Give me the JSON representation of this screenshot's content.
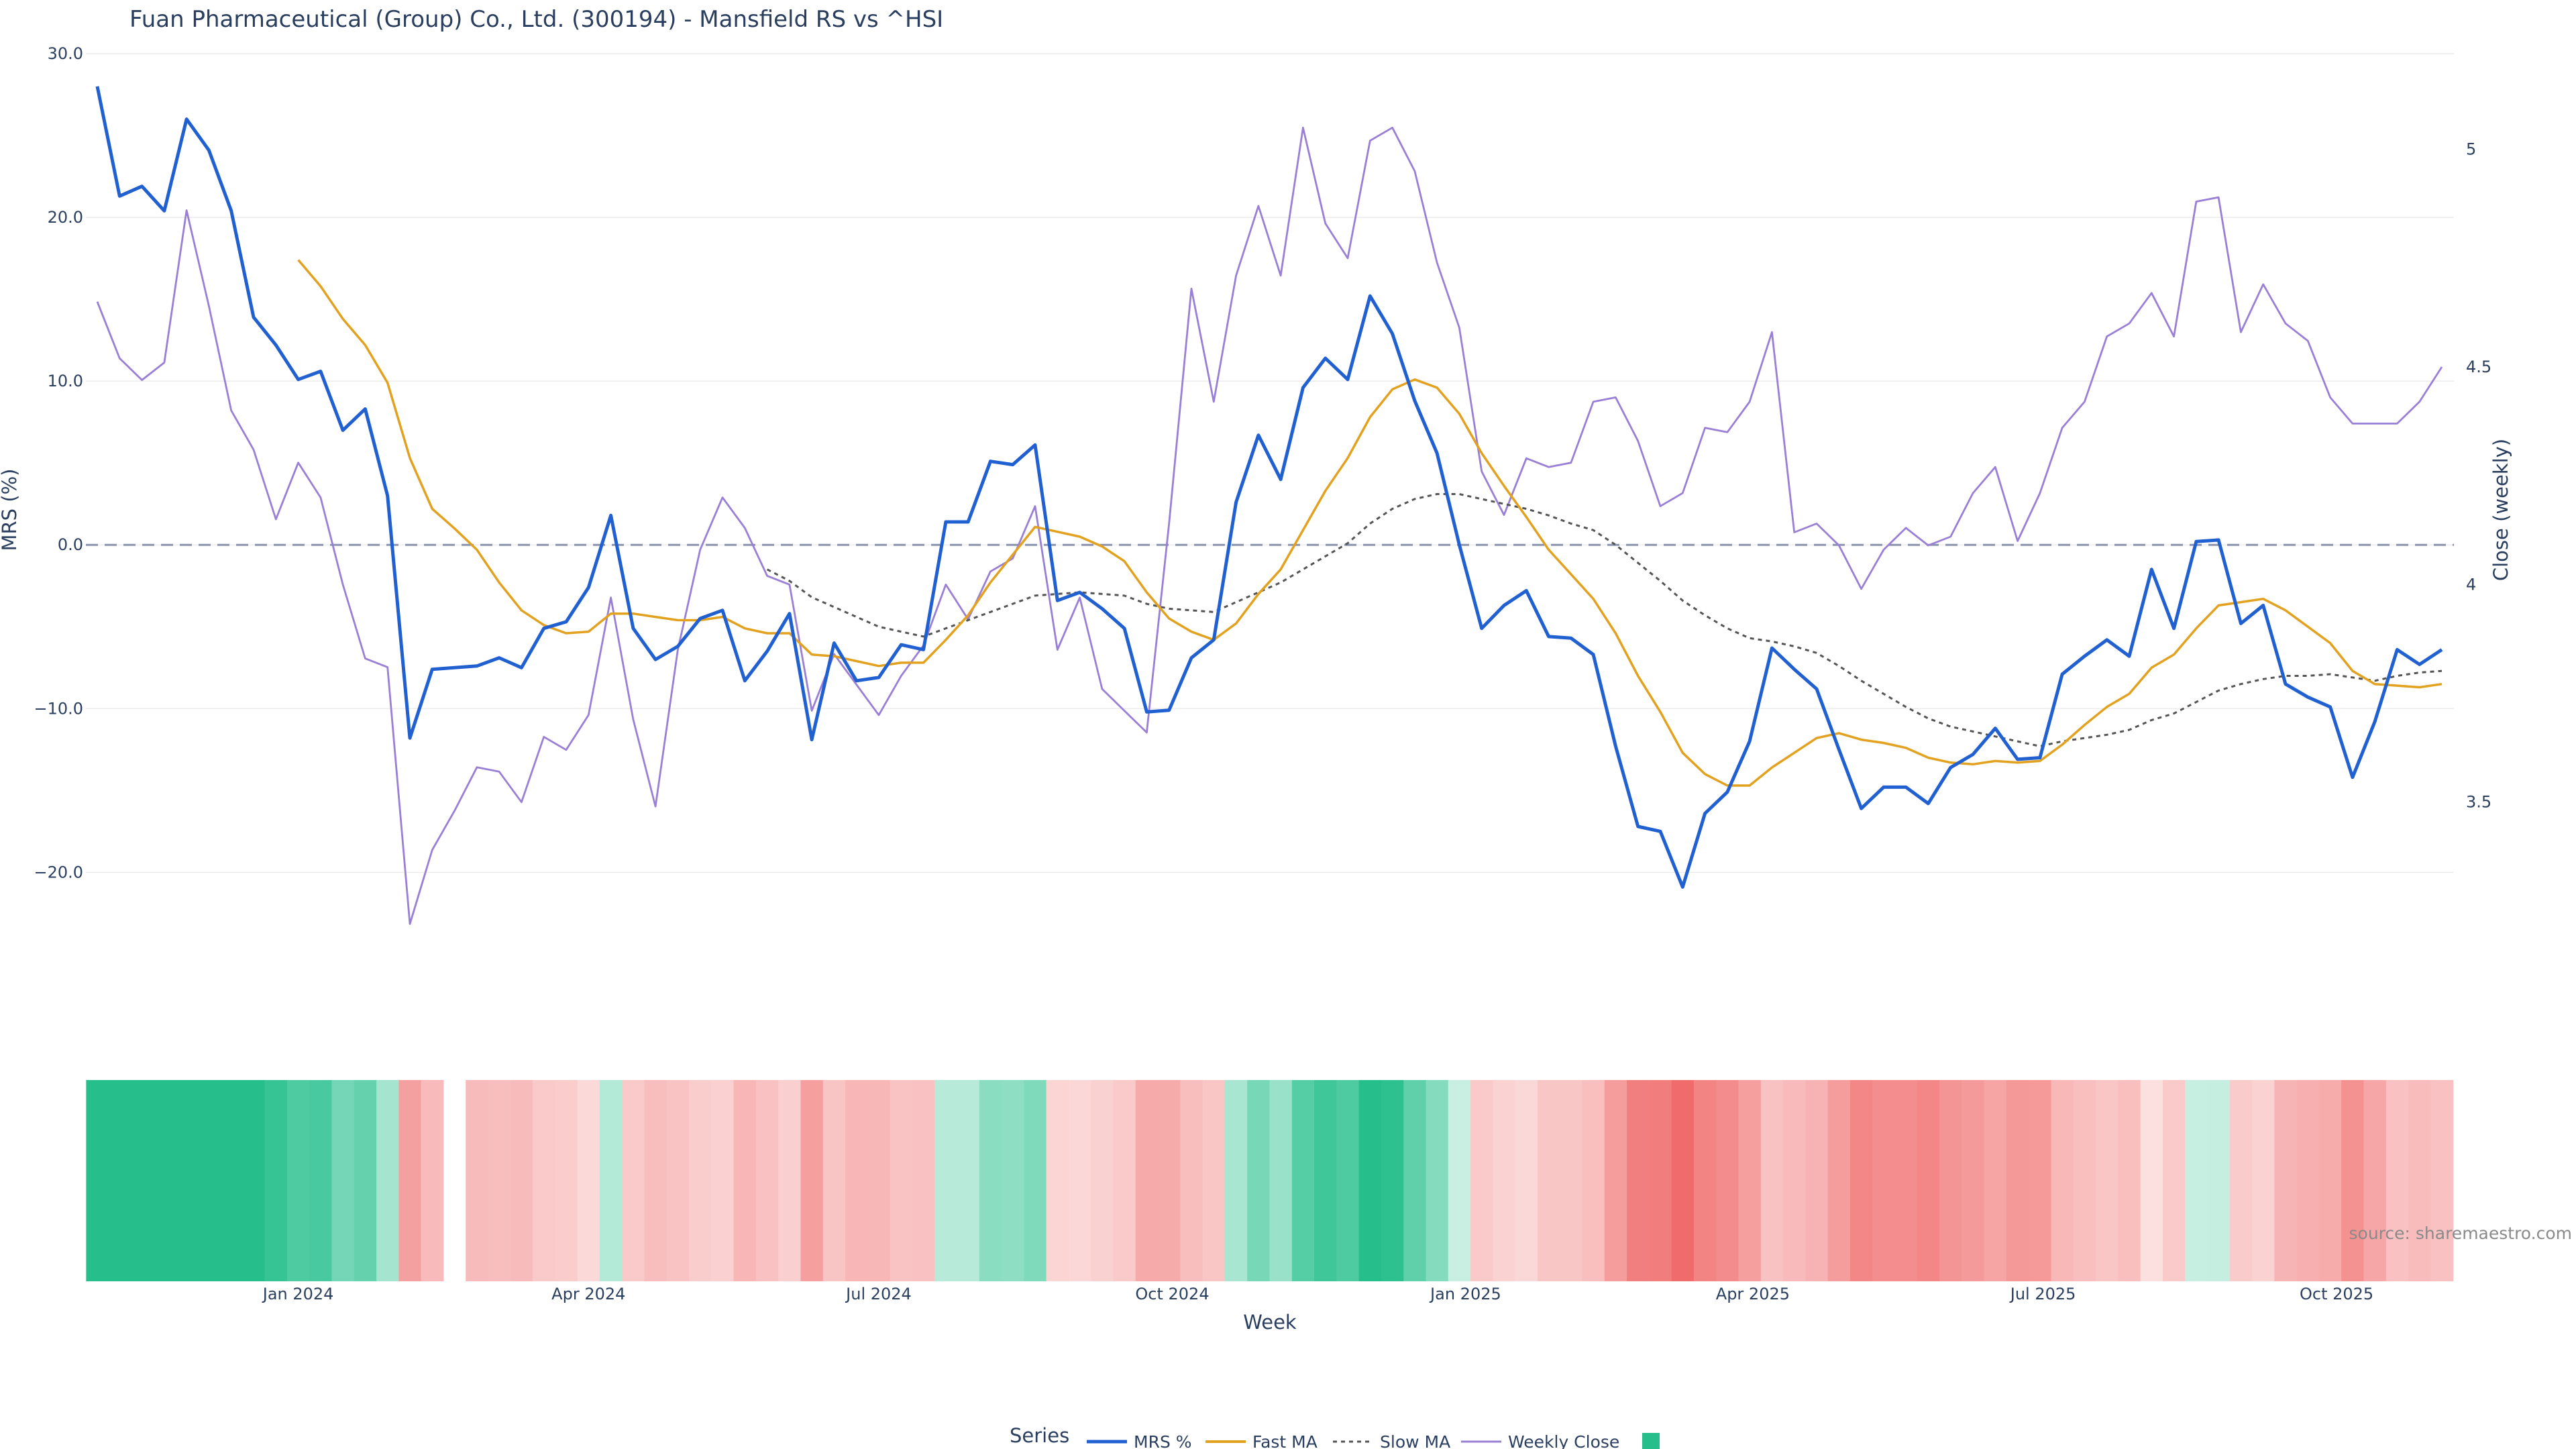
{
  "title": "Fuan Pharmaceutical (Group) Co., Ltd. (300194) - Mansfield RS vs ^HSI",
  "source": "source: sharemaestro.com",
  "colors": {
    "mrs": "#2160d0",
    "fast_ma": "#e2a11f",
    "slow_ma": "#555555",
    "weekly_close": "#9a7fd6",
    "zero_line": "#8a93ad",
    "positive": "#26bf8c",
    "negative": "#f06b6b"
  },
  "chart_data": {
    "type": "line",
    "x_start": "2023-10-30",
    "x_step_days": 7,
    "xlabel": "Week",
    "ylabel": "MRS (%)",
    "y2label": "Close (weekly)",
    "ylim": [
      -29.0,
      30.0
    ],
    "y2lim": [
      3.0,
      5.22
    ],
    "yticks": [
      30,
      20,
      10,
      0,
      -10,
      -20
    ],
    "ytick_labels": [
      "30.0",
      "20.0",
      "10.0",
      "0.0",
      "−10.0",
      "−20.0"
    ],
    "y2ticks": [
      5,
      4.5,
      4,
      3.5
    ],
    "y2tick_labels": [
      "5",
      "4.5",
      "4",
      "3.5"
    ],
    "xticks": [
      {
        "label": "Jan 2024",
        "date": "2024-01-01"
      },
      {
        "label": "Apr 2024",
        "date": "2024-04-01"
      },
      {
        "label": "Jul 2024",
        "date": "2024-07-01"
      },
      {
        "label": "Oct 2024",
        "date": "2024-10-01"
      },
      {
        "label": "Jan 2025",
        "date": "2025-01-01"
      },
      {
        "label": "Apr 2025",
        "date": "2025-04-01"
      },
      {
        "label": "Jul 2025",
        "date": "2025-07-01"
      },
      {
        "label": "Oct 2025",
        "date": "2025-10-01"
      }
    ],
    "grid": true,
    "legend": {
      "title": "Series",
      "position": "bottom"
    },
    "series": [
      {
        "name": "MRS %",
        "axis": "y",
        "style": "solid",
        "values": [
          28.0,
          21.3,
          21.9,
          20.4,
          26.0,
          24.1,
          20.4,
          13.9,
          12.2,
          10.1,
          10.6,
          7.0,
          8.3,
          3.0,
          -11.8,
          -7.6,
          -7.5,
          -7.4,
          -6.9,
          -7.5,
          -5.1,
          -4.7,
          -2.6,
          1.8,
          -5.1,
          -7.0,
          -6.2,
          -4.5,
          -4.0,
          -8.3,
          -6.5,
          -4.2,
          -11.9,
          -6.0,
          -8.3,
          -8.1,
          -6.1,
          -6.4,
          1.4,
          1.4,
          5.1,
          4.9,
          6.1,
          -3.4,
          -2.9,
          -3.9,
          -5.1,
          -10.2,
          -10.1,
          -6.9,
          -5.8,
          2.6,
          6.7,
          4.0,
          9.6,
          11.4,
          10.1,
          15.2,
          12.9,
          8.8,
          5.6,
          0.0,
          -5.1,
          -3.7,
          -2.8,
          -5.6,
          -5.7,
          -6.7,
          -12.3,
          -17.2,
          -17.5,
          -20.9,
          -16.4,
          -15.1,
          -12.0,
          -6.3,
          -7.6,
          -8.8,
          -12.5,
          -16.1,
          -14.8,
          -14.8,
          -15.8,
          -13.6,
          -12.8,
          -11.2,
          -13.1,
          -13.0,
          -7.9,
          -6.8,
          -5.8,
          -6.8,
          -1.5,
          -5.1,
          0.2,
          0.3,
          -4.8,
          -3.7,
          -8.5,
          -9.3,
          -9.9,
          -14.2,
          -10.8,
          -6.4,
          -7.3,
          -6.4
        ]
      },
      {
        "name": "Fast MA",
        "axis": "y",
        "style": "solid",
        "values": [
          null,
          null,
          null,
          null,
          null,
          null,
          null,
          null,
          null,
          17.4,
          15.8,
          13.8,
          12.2,
          9.9,
          5.3,
          2.2,
          1.0,
          -0.3,
          -2.3,
          -4.0,
          -4.9,
          -5.4,
          -5.3,
          -4.2,
          -4.2,
          -4.4,
          -4.6,
          -4.6,
          -4.4,
          -5.1,
          -5.4,
          -5.4,
          -6.7,
          -6.8,
          -7.1,
          -7.4,
          -7.2,
          -7.2,
          -5.8,
          -4.3,
          -2.3,
          -0.6,
          1.1,
          0.8,
          0.5,
          -0.1,
          -1.0,
          -2.9,
          -4.5,
          -5.3,
          -5.8,
          -4.8,
          -3.0,
          -1.5,
          0.9,
          3.3,
          5.3,
          7.8,
          9.5,
          10.1,
          9.6,
          8.0,
          5.6,
          3.6,
          1.7,
          -0.3,
          -1.8,
          -3.3,
          -5.4,
          -8.0,
          -10.2,
          -12.7,
          -14.0,
          -14.7,
          -14.7,
          -13.6,
          -12.7,
          -11.8,
          -11.5,
          -11.9,
          -12.1,
          -12.4,
          -13.0,
          -13.3,
          -13.4,
          -13.2,
          -13.3,
          -13.2,
          -12.2,
          -11.0,
          -9.9,
          -9.1,
          -7.5,
          -6.7,
          -5.1,
          -3.7,
          -3.5,
          -3.3,
          -4.0,
          -5.0,
          -6.0,
          -7.7,
          -8.5,
          -8.6,
          -8.7,
          -8.5
        ]
      },
      {
        "name": "Slow MA",
        "axis": "y",
        "style": "dash",
        "values": [
          null,
          null,
          null,
          null,
          null,
          null,
          null,
          null,
          null,
          null,
          null,
          null,
          null,
          null,
          null,
          null,
          null,
          null,
          null,
          null,
          null,
          null,
          null,
          null,
          null,
          null,
          null,
          null,
          null,
          null,
          -1.5,
          -2.2,
          -3.2,
          -3.8,
          -4.4,
          -5.0,
          -5.3,
          -5.6,
          -5.1,
          -4.6,
          -4.1,
          -3.6,
          -3.1,
          -3.0,
          -2.9,
          -3.0,
          -3.1,
          -3.6,
          -3.9,
          -4.0,
          -4.1,
          -3.5,
          -2.9,
          -2.3,
          -1.5,
          -0.7,
          0.1,
          1.3,
          2.2,
          2.8,
          3.1,
          3.1,
          2.8,
          2.5,
          2.2,
          1.8,
          1.3,
          0.9,
          0.0,
          -1.1,
          -2.2,
          -3.4,
          -4.3,
          -5.1,
          -5.7,
          -5.9,
          -6.2,
          -6.6,
          -7.4,
          -8.3,
          -9.1,
          -9.9,
          -10.6,
          -11.1,
          -11.4,
          -11.7,
          -12.0,
          -12.3,
          -12.0,
          -11.8,
          -11.6,
          -11.3,
          -10.7,
          -10.3,
          -9.6,
          -8.9,
          -8.5,
          -8.2,
          -8.0,
          -8.0,
          -7.9,
          -8.1,
          -8.3,
          -8.0,
          -7.8,
          -7.7
        ]
      },
      {
        "name": "Weekly Close",
        "axis": "y2",
        "style": "solid",
        "values": [
          4.65,
          4.52,
          4.47,
          4.51,
          4.86,
          4.64,
          4.4,
          4.31,
          4.15,
          4.28,
          4.2,
          4.0,
          3.83,
          3.81,
          3.22,
          3.39,
          3.48,
          3.58,
          3.57,
          3.5,
          3.65,
          3.62,
          3.7,
          3.97,
          3.69,
          3.49,
          3.85,
          4.08,
          4.2,
          4.13,
          4.02,
          4.0,
          3.71,
          3.84,
          3.77,
          3.7,
          3.79,
          3.86,
          4.0,
          3.92,
          4.03,
          4.06,
          4.18,
          3.85,
          3.97,
          3.76,
          3.71,
          3.66,
          4.14,
          4.68,
          4.42,
          4.71,
          4.87,
          4.71,
          5.05,
          4.83,
          4.75,
          5.02,
          5.05,
          4.95,
          4.74,
          4.59,
          4.26,
          4.16,
          4.29,
          4.27,
          4.28,
          4.42,
          4.43,
          4.33,
          4.18,
          4.21,
          4.36,
          4.35,
          4.42,
          4.58,
          4.12,
          4.14,
          4.09,
          3.99,
          4.08,
          4.13,
          4.09,
          4.11,
          4.21,
          4.27,
          4.1,
          4.21,
          4.36,
          4.42,
          4.57,
          4.6,
          4.67,
          4.57,
          4.88,
          4.89,
          4.58,
          4.69,
          4.6,
          4.56,
          4.43,
          4.37,
          4.37,
          4.37,
          4.42,
          4.5
        ]
      }
    ],
    "regime_band": {
      "description": "weekly MRS regime strip below the main plot; colour by MRS value",
      "gap_index": 16
    }
  }
}
